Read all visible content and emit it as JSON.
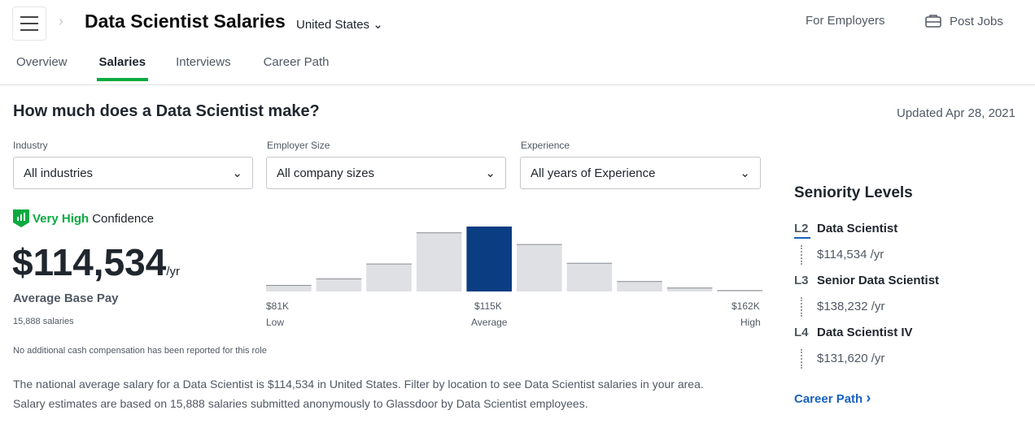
{
  "header": {
    "title": "Data Scientist Salaries",
    "location": "United States",
    "for_employers": "For Employers",
    "post_jobs": "Post Jobs"
  },
  "tabs": [
    {
      "label": "Overview"
    },
    {
      "label": "Salaries",
      "active": true
    },
    {
      "label": "Interviews"
    },
    {
      "label": "Career Path"
    }
  ],
  "main": {
    "heading": "How much does a Data Scientist make?",
    "updated": "Updated Apr 28, 2021",
    "filters": [
      {
        "label": "Industry",
        "value": "All industries"
      },
      {
        "label": "Employer Size",
        "value": "All company sizes"
      },
      {
        "label": "Experience",
        "value": "All years of Experience"
      }
    ],
    "confidence_level": "Very High",
    "confidence_word": "Confidence",
    "salary": "$114,534",
    "per": "/yr",
    "pay_label": "Average Base Pay",
    "count": "15,888 salaries",
    "note": "No additional cash compensation has been reported for this role",
    "paragraph1": "The national average salary for a Data Scientist is $114,534 in United States. Filter by location to see Data Scientist salaries in your area.",
    "paragraph2": "Salary estimates are based on 15,888 salaries submitted anonymously to Glassdoor by Data Scientist employees."
  },
  "chart_data": {
    "type": "bar",
    "values": [
      10,
      20,
      43,
      91,
      100,
      73,
      44,
      16,
      6,
      2
    ],
    "highlight_index": 4,
    "tick_labels": [
      {
        "value": "$81K",
        "label": "Low"
      },
      {
        "value": "$115K",
        "label": "Average"
      },
      {
        "value": "$162K",
        "label": "High"
      }
    ],
    "colors": {
      "bar": "#dfe0e4",
      "highlight": "#0b3d82"
    }
  },
  "seniority": {
    "title": "Seniority Levels",
    "levels": [
      {
        "code": "L2",
        "name": "Data Scientist",
        "pay": "$114,534 /yr"
      },
      {
        "code": "L3",
        "name": "Senior Data Scientist",
        "pay": "$138,232 /yr"
      },
      {
        "code": "L4",
        "name": "Data Scientist IV",
        "pay": "$131,620 /yr"
      }
    ],
    "career_link": "Career Path"
  }
}
